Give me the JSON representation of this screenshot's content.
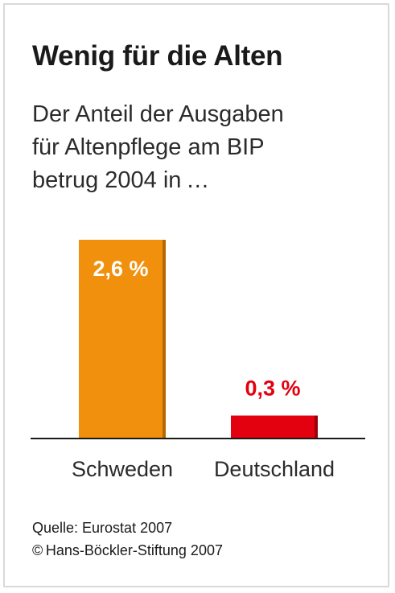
{
  "header": {
    "title": "Wenig für die Alten",
    "subtitle_lines": [
      "Der Anteil der Ausgaben",
      "für Altenpflege am BIP",
      "betrug 2004 in …"
    ]
  },
  "chart_data": {
    "type": "bar",
    "title": "Wenig für die Alten",
    "subtitle": "Der Anteil der Ausgaben für Altenpflege am BIP betrug 2004 in…",
    "categories": [
      "Schweden",
      "Deutschland"
    ],
    "values": [
      2.6,
      0.3
    ],
    "value_labels": [
      "2,6 %",
      "0,3 %"
    ],
    "unit": "%",
    "ylim": [
      0,
      2.6
    ],
    "grid": false,
    "colors": {
      "bars": [
        "#f0900c",
        "#e3000f"
      ],
      "bar_shadow": [
        "#b86800",
        "#9e0009"
      ],
      "value_label": [
        "#ffffff",
        "#e3000f"
      ],
      "baseline": "#1a1a1a",
      "category_label": "#2b2b2b"
    }
  },
  "footer": {
    "source": "Quelle: Eurostat 2007",
    "copyright": "© Hans-Böckler-Stiftung 2007"
  }
}
